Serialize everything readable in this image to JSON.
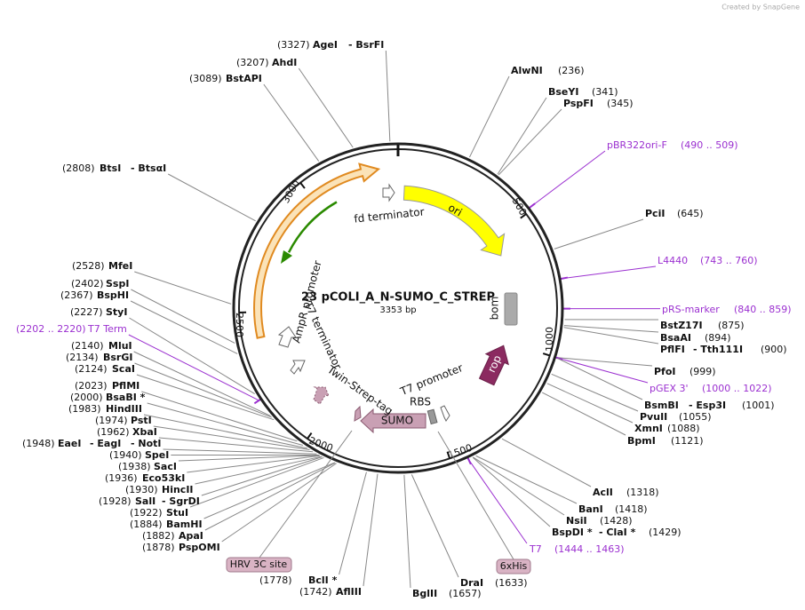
{
  "header": {
    "credit": "Created by SnapGene"
  },
  "map": {
    "name": "23 pCOLI_A_N-SUMO_C_STREP",
    "size": "3353 bp",
    "ticks": [
      "500",
      "1000",
      "1500",
      "2000",
      "2500",
      "3000"
    ],
    "features": [
      "ori",
      "fd terminator",
      "bom",
      "rop",
      "T7 promoter",
      "RBS",
      "SUMO",
      "Twin-Strep-tag",
      "T7 terminator",
      "AmpR promoter"
    ]
  },
  "tags": [
    "HRV 3C site",
    "6xHis"
  ],
  "sites": [
    {
      "n": "AgeI",
      "a": "- BsrFI",
      "s": "(3327)"
    },
    {
      "n": "AhdI",
      "s": "(3207)"
    },
    {
      "n": "BstAPI",
      "s": "(3089)"
    },
    {
      "n": "BtsI",
      "a": "- BtsαI",
      "s": "(2808)"
    },
    {
      "n": "AlwNI",
      "s": "(236)"
    },
    {
      "n": "BseYI",
      "s": "(341)"
    },
    {
      "n": "PspFI",
      "s": "(345)"
    },
    {
      "f": "pBR322ori-F",
      "r": "(490 .. 509)"
    },
    {
      "n": "PciI",
      "s": "(645)"
    },
    {
      "f": "L4440",
      "r": "(743 .. 760)"
    },
    {
      "f": "pRS-marker",
      "r": "(840 .. 859)"
    },
    {
      "n": "BstZ17I",
      "s": "(875)"
    },
    {
      "n": "BsaAI",
      "s": "(894)"
    },
    {
      "n": "PflFI",
      "a": "- Tth111I",
      "s": "(900)"
    },
    {
      "n": "PfoI",
      "s": "(999)"
    },
    {
      "f": "pGEX 3'",
      "r": "(1000 .. 1022)"
    },
    {
      "n": "BsmBI",
      "a": "- Esp3I",
      "s": "(1001)"
    },
    {
      "n": "PvuII",
      "s": "(1055)"
    },
    {
      "n": "XmnI",
      "s": "(1088)"
    },
    {
      "n": "BpmI",
      "s": "(1121)"
    },
    {
      "n": "AclI",
      "s": "(1318)"
    },
    {
      "n": "BanI",
      "s": "(1418)"
    },
    {
      "n": "NsiI",
      "s": "(1428)"
    },
    {
      "n": "BspDI *",
      "a": "- ClaI *",
      "s": "(1429)"
    },
    {
      "f": "T7",
      "r": "(1444 .. 1463)"
    },
    {
      "n": "DraI",
      "s": "(1633)"
    },
    {
      "n": "BglII",
      "s": "(1657)"
    },
    {
      "n": "AflIII",
      "s": "(1742)"
    },
    {
      "n": "BclI *",
      "s": "(1778)"
    },
    {
      "n": "MfeI",
      "s": "(2528)"
    },
    {
      "n": "SspI",
      "s": "(2402)"
    },
    {
      "n": "BspHI",
      "s": "(2367)"
    },
    {
      "n": "StyI",
      "s": "(2227)"
    },
    {
      "f": "T7 Term",
      "r": "(2202 .. 2220)"
    },
    {
      "n": "MluI",
      "s": "(2140)"
    },
    {
      "n": "BsrGI",
      "s": "(2134)"
    },
    {
      "n": "ScaI",
      "s": "(2124)"
    },
    {
      "n": "PflMI",
      "s": "(2023)"
    },
    {
      "n": "BsaBI *",
      "s": "(2000)"
    },
    {
      "n": "HindIII",
      "s": "(1983)"
    },
    {
      "n": "PstI",
      "s": "(1974)"
    },
    {
      "n": "XbaI",
      "s": "(1962)"
    },
    {
      "n": "EaeI",
      "a": "- EagI",
      "b": "- NotI",
      "s": "(1948)"
    },
    {
      "n": "SpeI",
      "s": "(1940)"
    },
    {
      "n": "SacI",
      "s": "(1938)"
    },
    {
      "n": "Eco53kI",
      "s": "(1936)"
    },
    {
      "n": "HincII",
      "s": "(1930)"
    },
    {
      "n": "SalI",
      "a": "- SgrDI",
      "s": "(1928)"
    },
    {
      "n": "StuI",
      "s": "(1922)"
    },
    {
      "n": "BamHI",
      "s": "(1884)"
    },
    {
      "n": "ApaI",
      "s": "(1882)"
    },
    {
      "n": "PspOMI",
      "s": "(1878)"
    }
  ]
}
